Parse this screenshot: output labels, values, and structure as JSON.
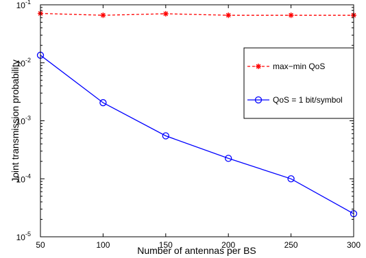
{
  "chart_data": {
    "type": "line",
    "title": "",
    "xlabel": "Number of antennas per BS",
    "ylabel": "Joint transmission probability",
    "xlim": [
      50,
      300
    ],
    "ylim": [
      1e-05,
      0.1
    ],
    "yscale": "log",
    "grid": false,
    "legend_position": "right",
    "x": [
      50,
      100,
      150,
      200,
      250,
      300
    ],
    "x_tick_labels": [
      "50",
      "100",
      "150",
      "200",
      "250",
      "300"
    ],
    "y_tick_labels": [
      {
        "base": "10",
        "exp": "-5",
        "value": 1e-05
      },
      {
        "base": "10",
        "exp": "-4",
        "value": 0.0001
      },
      {
        "base": "10",
        "exp": "-3",
        "value": 0.001
      },
      {
        "base": "10",
        "exp": "-2",
        "value": 0.01
      },
      {
        "base": "10",
        "exp": "-1",
        "value": 0.1
      }
    ],
    "series": [
      {
        "name": "max−min QoS",
        "color": "#ff0000",
        "line_style": "dashed",
        "marker": "asterisk",
        "values": [
          0.071,
          0.066,
          0.07,
          0.066,
          0.066,
          0.066
        ]
      },
      {
        "name": "QoS = 1 bit/symbol",
        "color": "#0000ff",
        "line_style": "solid",
        "marker": "circle",
        "values": [
          0.0135,
          0.00205,
          0.00055,
          0.000225,
          0.0001,
          2.5e-05
        ]
      }
    ]
  }
}
